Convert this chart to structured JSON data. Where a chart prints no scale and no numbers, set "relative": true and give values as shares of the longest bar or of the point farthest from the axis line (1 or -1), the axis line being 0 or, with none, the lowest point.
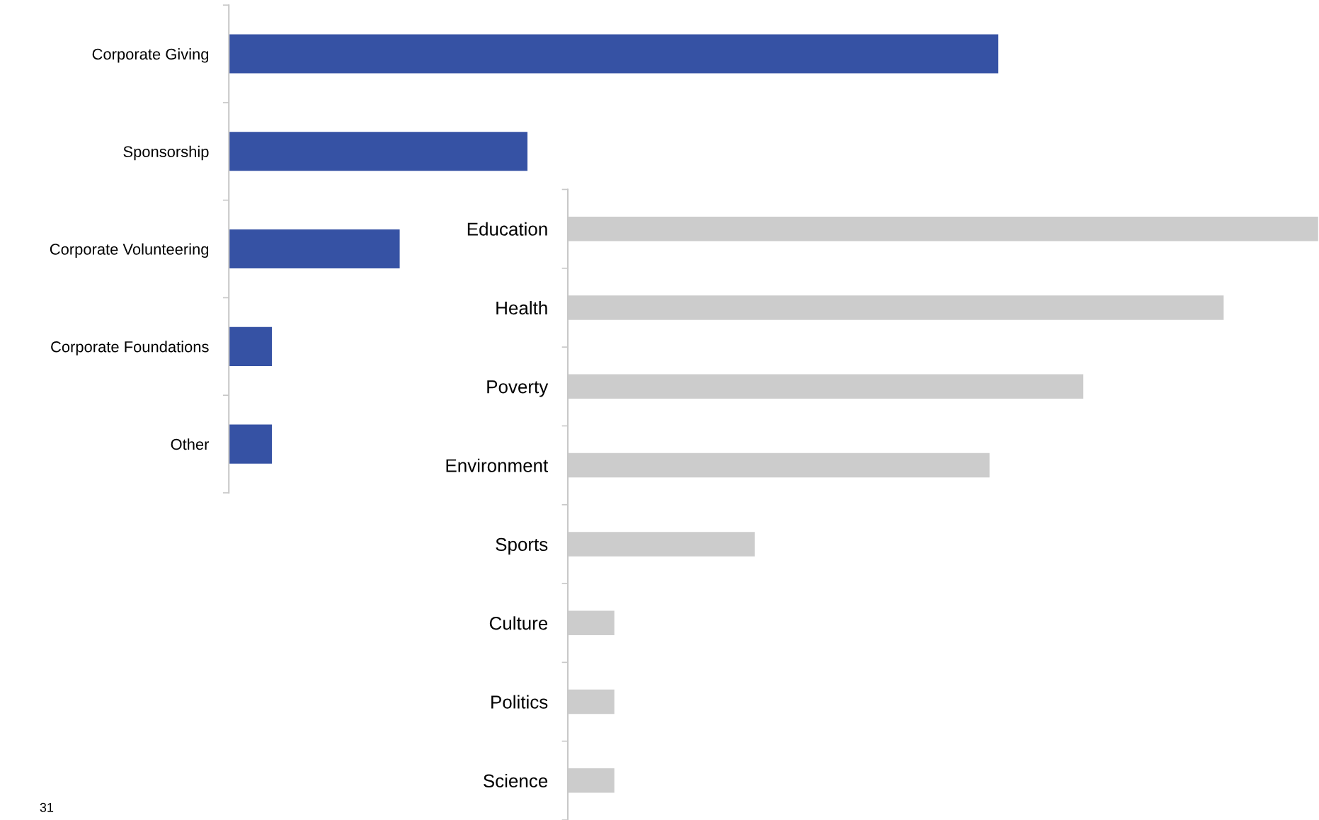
{
  "chart_data": [
    {
      "type": "bar",
      "orientation": "horizontal",
      "relative": true,
      "categories": [
        "Corporate Giving",
        "Sponsorship",
        "Corporate Volunteering",
        "Corporate Foundations",
        "Other"
      ],
      "series": [
        {
          "color": "#3652a4",
          "values": [
            1,
            0.388,
            0.222,
            0.056,
            0.056
          ]
        }
      ]
    },
    {
      "type": "bar",
      "orientation": "horizontal",
      "relative": true,
      "categories": [
        "Education",
        "Health",
        "Poverty",
        "Environment",
        "Sports",
        "Culture",
        "Politics",
        "Science"
      ],
      "series": [
        {
          "color": "#cccccc",
          "values": [
            1,
            0.874,
            0.687,
            0.562,
            0.249,
            0.062,
            0.062,
            0.062
          ]
        }
      ],
      "annotations": [
        "31"
      ]
    }
  ]
}
